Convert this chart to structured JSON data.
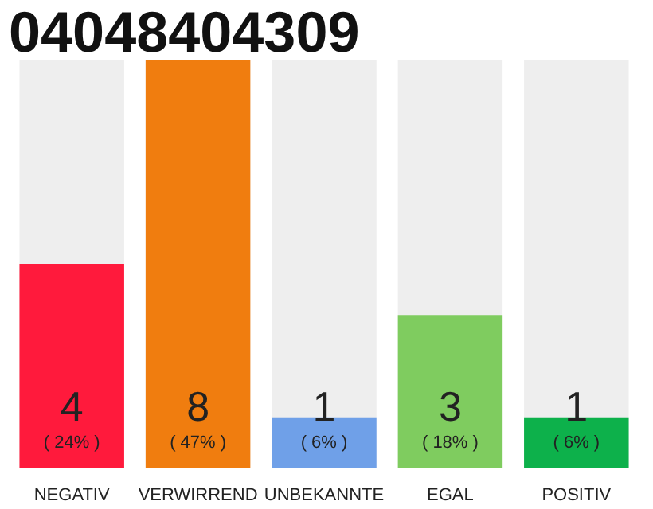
{
  "chart_data": {
    "type": "bar",
    "title": "04048404309",
    "categories": [
      "NEGATIV",
      "VERWIRREND",
      "UNBEKANNTE",
      "EGAL",
      "POSITIV"
    ],
    "values": [
      4,
      8,
      1,
      3,
      1
    ],
    "colors": [
      "#ff1a3c",
      "#f07d0f",
      "#6fa0e8",
      "#7fcc5f",
      "#0db14b"
    ],
    "data_labels": true,
    "annotations": [
      "( 24% )",
      "( 47% )",
      "( 6% )",
      "( 18% )",
      "( 6% )"
    ],
    "grid": false
  }
}
